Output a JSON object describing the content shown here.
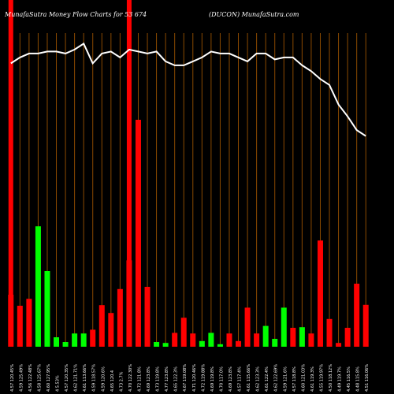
{
  "header": {
    "left": "MunafaSutra  Money Flow  Charts for 53 674",
    "right": "(DUCON) MunafaSutra.com"
  },
  "colors": {
    "background": "#000000",
    "positive": "#00ff00",
    "negative": "#ff0000",
    "gridline": "#8b4a00",
    "price_line": "#ffffff",
    "tick_text": "#ffffff"
  },
  "chart_data": {
    "type": "bar",
    "title": "MunafaSutra  Money Flow  Charts for 53 674",
    "subtitle": "(DUCON) MunafaSutra.com",
    "categories": [
      "4.57 120.45%",
      "4.59 125.49%",
      "4.56 122.48%",
      "4.58 125.67%",
      "4.60 127.95%",
      "4 5.53%",
      "4.57 120.35%",
      "4.62 121.71%",
      "4.61 113.66%",
      "4.59 118.57%",
      "4.59 120.6%",
      "4.65 120.4",
      "4.73 2.7%",
      "4.70 122.30%",
      "4.72 121.8%",
      "4.69 123.8%",
      "4.73 119.8%",
      "4.77 123.8%",
      "4.65 122.3%",
      "4.67 119.08%",
      "4.71 120.46%",
      "4.72 119.88%",
      "4.69 119.8%",
      "4.70 117.0%",
      "4.69 123.8%",
      "4.57 117.4%",
      "4.61 115.66%",
      "4.62 123.3%",
      "4.61 122.4%",
      "4.62 122.69%",
      "4.59 121.6%",
      "4.57 118.8%",
      "4.60 121.03%",
      "4.61 119.3%",
      "4.55 119.97%",
      "4.50 118.12%",
      "4.49 119.7%",
      "4.45 116.5%",
      "4.48 115.8%",
      "4.51 116.06%"
    ],
    "values": [
      1.65,
      1.3,
      1.52,
      -3.82,
      -2.4,
      -0.3,
      -0.15,
      -0.42,
      -0.42,
      0.54,
      1.32,
      1.07,
      1.83,
      2.74,
      7.2,
      1.9,
      -0.15,
      -0.12,
      0.44,
      0.92,
      0.42,
      -0.18,
      -0.44,
      -0.08,
      -0.42,
      -0.18,
      1.24,
      -0.42,
      -0.66,
      0.25,
      1.24,
      -0.6,
      0.62,
      -0.42,
      3.37,
      0.88,
      0.12,
      -0.6,
      2.0,
      1.33
    ],
    "bar_colors": [
      "red",
      "red",
      "red",
      "green",
      "green",
      "green",
      "green",
      "green",
      "green",
      "red",
      "red",
      "red",
      "red",
      "red",
      "red",
      "red",
      "green",
      "green",
      "red",
      "red",
      "red",
      "green",
      "green",
      "green",
      "red",
      "red",
      "red",
      "red",
      "green",
      "green",
      "green",
      "red",
      "green",
      "red",
      "red",
      "red",
      "red",
      "red",
      "red",
      "red"
    ],
    "price_line": [
      4.62,
      4.59,
      4.57,
      4.57,
      4.56,
      4.56,
      4.57,
      4.55,
      4.52,
      4.62,
      4.57,
      4.56,
      4.59,
      4.55,
      4.56,
      4.57,
      4.56,
      4.61,
      4.63,
      4.63,
      4.61,
      4.59,
      4.56,
      4.57,
      4.57,
      4.59,
      4.61,
      4.57,
      4.57,
      4.6,
      4.59,
      4.59,
      4.63,
      4.66,
      4.7,
      4.73,
      4.83,
      4.89,
      4.96,
      4.99
    ],
    "price_range": [
      4.45,
      5.1
    ],
    "highlight_bars": [
      0,
      13
    ],
    "grid": true,
    "legend": "none"
  }
}
